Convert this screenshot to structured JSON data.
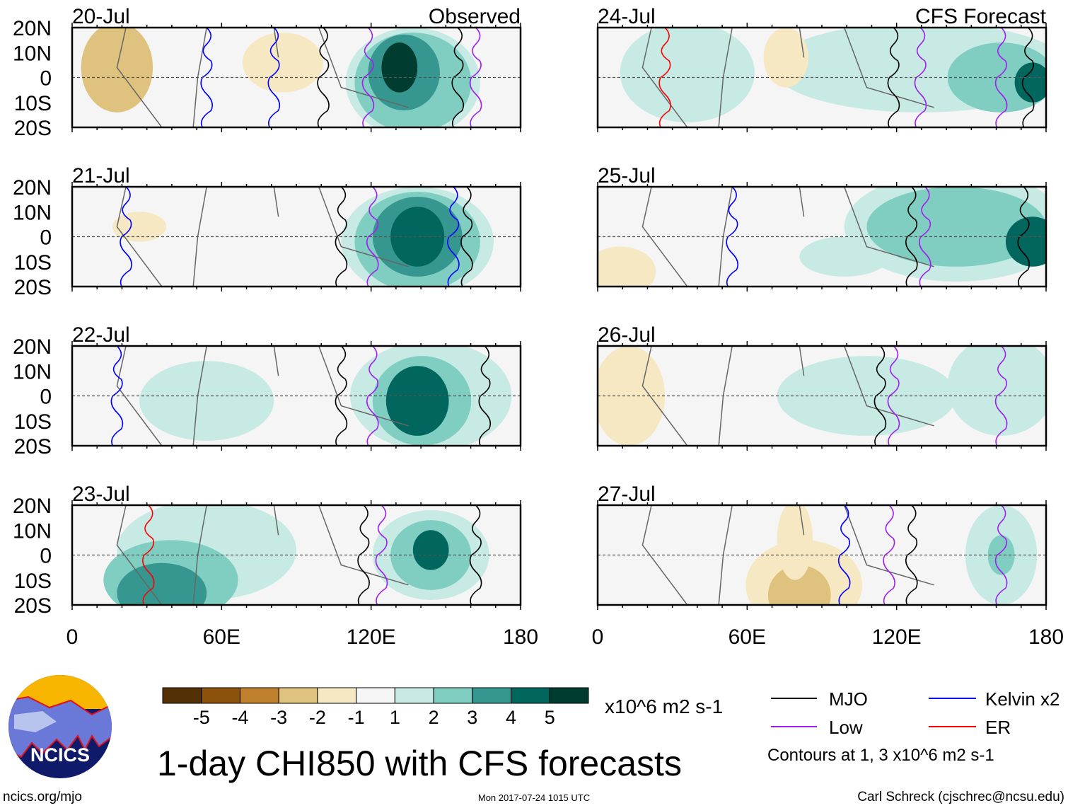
{
  "panel_labels": {
    "observed": "Observed",
    "forecast": "CFS Forecast"
  },
  "panels": [
    {
      "date": "20-Jul",
      "column": "observed"
    },
    {
      "date": "21-Jul",
      "column": "observed"
    },
    {
      "date": "22-Jul",
      "column": "observed"
    },
    {
      "date": "23-Jul",
      "column": "observed"
    },
    {
      "date": "24-Jul",
      "column": "forecast"
    },
    {
      "date": "25-Jul",
      "column": "forecast"
    },
    {
      "date": "26-Jul",
      "column": "forecast"
    },
    {
      "date": "27-Jul",
      "column": "forecast"
    }
  ],
  "lat_labels": [
    "20N",
    "10N",
    "0",
    "10S",
    "20S"
  ],
  "lon_labels": [
    "0",
    "60E",
    "120E",
    "180"
  ],
  "colorbar": {
    "colors": [
      "#543005",
      "#8c510a",
      "#bf812d",
      "#dfc27d",
      "#f6e8c3",
      "#f5f5f5",
      "#c7eae5",
      "#80cdc1",
      "#35978f",
      "#01665e",
      "#003c30"
    ],
    "ticks": [
      "-5",
      "-4",
      "-3",
      "-2",
      "-1",
      "1",
      "2",
      "3",
      "4",
      "5"
    ],
    "units": "x10^6 m2 s-1"
  },
  "legend": {
    "items": [
      {
        "label": "MJO",
        "color": "#000000"
      },
      {
        "label": "Kelvin x2",
        "color": "#0000ff"
      },
      {
        "label": "Low",
        "color": "#a020f0"
      },
      {
        "label": "ER",
        "color": "#ff0000"
      }
    ],
    "note": "Contours at 1, 3 x10^6 m2 s-1"
  },
  "title": "1-day CHI850 with CFS forecasts",
  "logo": {
    "text": "NCICS"
  },
  "footer": {
    "url": "ncics.org/mjo",
    "timestamp": "Mon 2017-07-24 1015 UTC",
    "credit": "Carl Schreck (cjschrec@ncsu.edu)"
  }
}
